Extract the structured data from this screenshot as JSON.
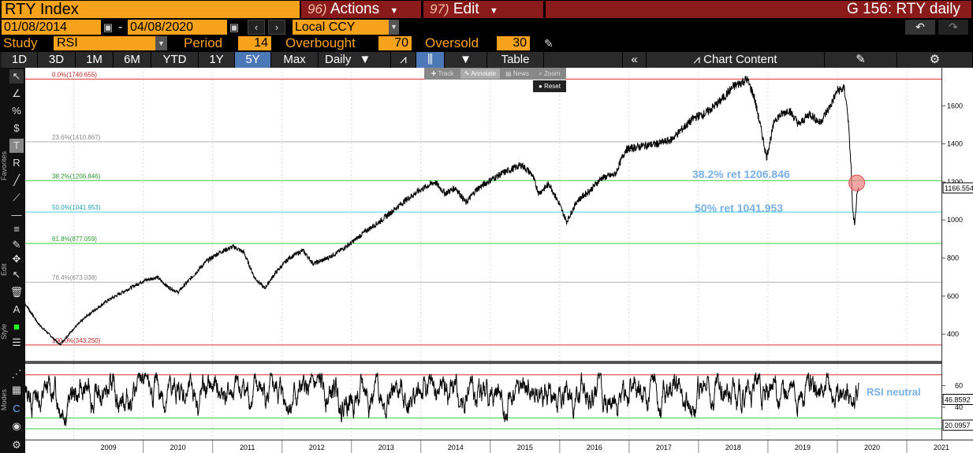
{
  "header": {
    "title": "RTY Index",
    "actions_num": "96)",
    "actions_label": "Actions",
    "edit_num": "97)",
    "edit_label": "Edit",
    "chart_title": "G 156: RTY daily"
  },
  "dates": {
    "start": "01/08/2014",
    "dash": "-",
    "end": "04/08/2020"
  },
  "currency": "Local CCY",
  "study": {
    "label": "Study",
    "value": "RSI",
    "period_label": "Period",
    "period": "14",
    "overbought_label": "Overbought",
    "overbought": "70",
    "oversold_label": "Oversold",
    "oversold": "30"
  },
  "toolbar": {
    "ranges": [
      "1D",
      "3D",
      "1M",
      "6M",
      "YTD",
      "1Y",
      "5Y",
      "Max"
    ],
    "active_range": "5Y",
    "frequency": "Daily",
    "table_label": "Table",
    "chart_content_label": "Chart Content"
  },
  "mini_toolbar": {
    "track": "Track",
    "annotate": "Annotate",
    "news": "News",
    "zoom": "Zoom",
    "reset": "Reset"
  },
  "side_labels": {
    "favorites": "Favorites",
    "edit": "Edit",
    "style": "Style",
    "modes": "Modes"
  },
  "colors": {
    "orange": "#f7a21b",
    "maroon": "#8b1a1a",
    "red_line": "#e03030",
    "green_line": "#30d040",
    "cyan_line": "#40d0e0",
    "grey_line": "#b0b0b0",
    "annotation": "#7ab0e8",
    "highlight": "#f08080"
  },
  "chart_data": {
    "type": "line",
    "price_ylim": [
      260,
      1800
    ],
    "price_yticks": [
      400,
      600,
      800,
      1000,
      1200,
      1400,
      1600
    ],
    "current_price": "1166.554",
    "xlim": [
      2008.3,
      2021.5
    ],
    "xticks": [
      "2009",
      "2010",
      "2011",
      "2012",
      "2013",
      "2014",
      "2015",
      "2016",
      "2017",
      "2018",
      "2019",
      "2020",
      "2021"
    ],
    "fib_levels": [
      {
        "label": "0.0%(1740.655)",
        "value": 1740.655,
        "color": "#e03030"
      },
      {
        "label": "23.6%(1410.867)",
        "value": 1410.867,
        "color": "#b0b0b0"
      },
      {
        "label": "38.2%(1206.846)",
        "value": 1206.846,
        "color": "#30d040"
      },
      {
        "label": "50.0%(1041.953)",
        "value": 1041.953,
        "color": "#40d0e0"
      },
      {
        "label": "61.8%(877.059)",
        "value": 877.059,
        "color": "#30d040"
      },
      {
        "label": "76.4%(673.038)",
        "value": 673.038,
        "color": "#b0b0b0"
      },
      {
        "label": "100.0%(343.250)",
        "value": 343.25,
        "color": "#e03030"
      }
    ],
    "annotations": [
      "38.2% ret 1206.846",
      "50% ret 1041.953",
      "RSI neutral"
    ],
    "price_series": [
      [
        2008.3,
        560
      ],
      [
        2008.5,
        450
      ],
      [
        2008.7,
        380
      ],
      [
        2008.8,
        345
      ],
      [
        2009.0,
        430
      ],
      [
        2009.2,
        500
      ],
      [
        2009.5,
        580
      ],
      [
        2009.8,
        640
      ],
      [
        2010.0,
        680
      ],
      [
        2010.2,
        700
      ],
      [
        2010.35,
        650
      ],
      [
        2010.5,
        620
      ],
      [
        2010.7,
        700
      ],
      [
        2010.9,
        780
      ],
      [
        2011.1,
        830
      ],
      [
        2011.3,
        860
      ],
      [
        2011.45,
        830
      ],
      [
        2011.6,
        700
      ],
      [
        2011.75,
        640
      ],
      [
        2011.9,
        720
      ],
      [
        2012.1,
        800
      ],
      [
        2012.3,
        840
      ],
      [
        2012.45,
        770
      ],
      [
        2012.6,
        790
      ],
      [
        2012.8,
        830
      ],
      [
        2013.0,
        880
      ],
      [
        2013.2,
        940
      ],
      [
        2013.4,
        990
      ],
      [
        2013.6,
        1050
      ],
      [
        2013.8,
        1110
      ],
      [
        2014.0,
        1160
      ],
      [
        2014.2,
        1200
      ],
      [
        2014.35,
        1140
      ],
      [
        2014.5,
        1170
      ],
      [
        2014.65,
        1090
      ],
      [
        2014.8,
        1160
      ],
      [
        2015.0,
        1210
      ],
      [
        2015.2,
        1250
      ],
      [
        2015.45,
        1290
      ],
      [
        2015.6,
        1240
      ],
      [
        2015.7,
        1140
      ],
      [
        2015.85,
        1190
      ],
      [
        2016.0,
        1080
      ],
      [
        2016.1,
        990
      ],
      [
        2016.25,
        1100
      ],
      [
        2016.45,
        1160
      ],
      [
        2016.6,
        1220
      ],
      [
        2016.8,
        1240
      ],
      [
        2016.95,
        1370
      ],
      [
        2017.2,
        1390
      ],
      [
        2017.4,
        1400
      ],
      [
        2017.6,
        1420
      ],
      [
        2017.8,
        1490
      ],
      [
        2017.95,
        1540
      ],
      [
        2018.1,
        1560
      ],
      [
        2018.3,
        1620
      ],
      [
        2018.5,
        1700
      ],
      [
        2018.7,
        1740
      ],
      [
        2018.8,
        1650
      ],
      [
        2018.9,
        1480
      ],
      [
        2018.98,
        1330
      ],
      [
        2019.1,
        1530
      ],
      [
        2019.3,
        1580
      ],
      [
        2019.45,
        1500
      ],
      [
        2019.6,
        1560
      ],
      [
        2019.75,
        1510
      ],
      [
        2019.9,
        1600
      ],
      [
        2020.0,
        1680
      ],
      [
        2020.1,
        1690
      ],
      [
        2020.15,
        1560
      ],
      [
        2020.2,
        1260
      ],
      [
        2020.22,
        1050
      ],
      [
        2020.25,
        966
      ],
      [
        2020.28,
        1120
      ],
      [
        2020.31,
        1166
      ]
    ],
    "rsi_ylim": [
      10,
      80
    ],
    "rsi_yticks": [
      40,
      60
    ],
    "rsi_current": "46.8592",
    "rsi_low": "20.0957",
    "rsi_overbought": 70,
    "rsi_oversold": 30
  }
}
